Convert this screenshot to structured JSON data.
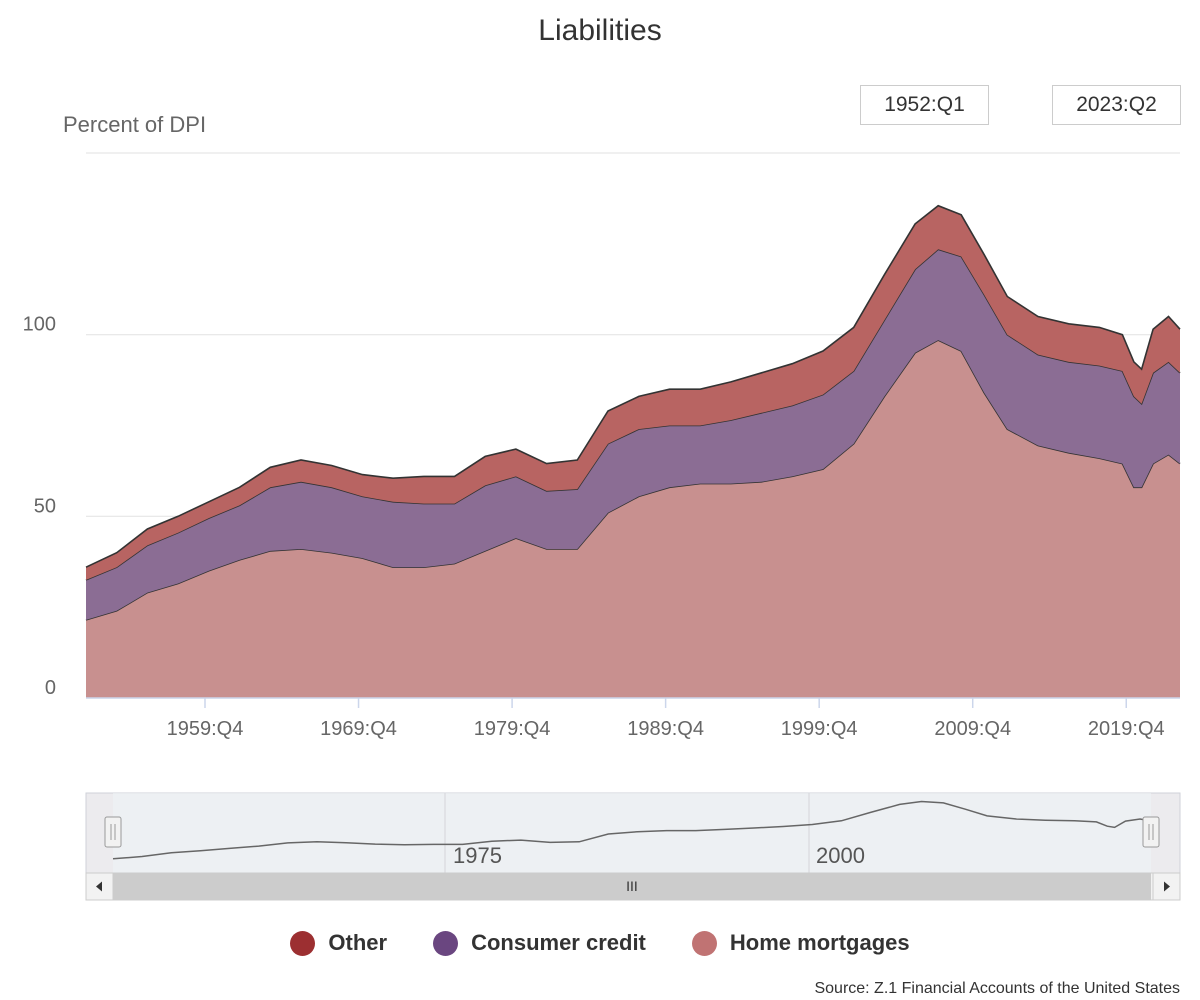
{
  "chart_title": "Liabilities",
  "range_selector": {
    "from": "1952:Q1",
    "to": "2023:Q2"
  },
  "source_text": "Source: Z.1 Financial Accounts of the United States",
  "colors": {
    "other": "#b86462",
    "consumer_credit": "#8b6d94",
    "home_mortgages": "#c8908f",
    "legend_other": "#9c2f31",
    "legend_consumer": "#6a4680",
    "legend_home": "#c07373",
    "line": "#333333"
  },
  "navigator": {
    "labels": [
      "1975",
      "2000"
    ],
    "scrollbar_grip": "III",
    "handle_glyph": "||"
  },
  "chart_data": {
    "type": "area",
    "stacked": true,
    "title": "Liabilities",
    "ylabel": "Percent of DPI",
    "xlabel": "",
    "ylim": [
      0,
      150
    ],
    "yticks": [
      0,
      50,
      100
    ],
    "xticks": [
      "1959:Q4",
      "1969:Q4",
      "1979:Q4",
      "1989:Q4",
      "1999:Q4",
      "2009:Q4",
      "2019:Q4"
    ],
    "grid": true,
    "legend": "bottom",
    "x": [
      1952.0,
      1954.0,
      1956.0,
      1958.0,
      1960.0,
      1962.0,
      1964.0,
      1966.0,
      1968.0,
      1970.0,
      1972.0,
      1974.0,
      1976.0,
      1978.0,
      1980.0,
      1982.0,
      1984.0,
      1986.0,
      1988.0,
      1990.0,
      1992.0,
      1994.0,
      1996.0,
      1998.0,
      2000.0,
      2002.0,
      2004.0,
      2006.0,
      2007.5,
      2009.0,
      2010.5,
      2012.0,
      2014.0,
      2016.0,
      2018.0,
      2019.5,
      2020.25,
      2020.75,
      2021.5,
      2022.5,
      2023.25
    ],
    "series": [
      {
        "name": "Home mortgages",
        "values": [
          21.5,
          24,
          29,
          31.5,
          35,
          38,
          40.5,
          41,
          40,
          38.5,
          36,
          36,
          37,
          40.5,
          44,
          41,
          41,
          51,
          55.5,
          58,
          59,
          59,
          59.5,
          61,
          63,
          70,
          83,
          95,
          98.5,
          95.5,
          84,
          74,
          69.5,
          67.5,
          66,
          64.5,
          58,
          58,
          64.5,
          67,
          64.5
        ]
      },
      {
        "name": "Consumer credit",
        "values": [
          11,
          12,
          13,
          14,
          14.5,
          15,
          17.5,
          18.5,
          18,
          17,
          18,
          17.5,
          16.5,
          18,
          17,
          16,
          16.5,
          19,
          18.5,
          17,
          16,
          17.5,
          19,
          19.5,
          20.5,
          20,
          21,
          23,
          25,
          26,
          27,
          26,
          25,
          25,
          25.5,
          25.5,
          25,
          23,
          25,
          25.5,
          25
        ]
      },
      {
        "name": "Other",
        "values": [
          3.5,
          4,
          4.5,
          4.5,
          4.5,
          5,
          5.5,
          6,
          6,
          6,
          6.5,
          7.5,
          7.5,
          8,
          7.5,
          7.5,
          8,
          9,
          9,
          10,
          10,
          10.5,
          11,
          11.5,
          12,
          12,
          12.5,
          12.5,
          12,
          11.5,
          11,
          10.5,
          10.5,
          10.5,
          10.5,
          10,
          9.5,
          9.5,
          12,
          12.5,
          12
        ]
      }
    ]
  },
  "legend_items": [
    {
      "label": "Other",
      "key": "other"
    },
    {
      "label": "Consumer credit",
      "key": "consumer"
    },
    {
      "label": "Home mortgages",
      "key": "home"
    }
  ]
}
